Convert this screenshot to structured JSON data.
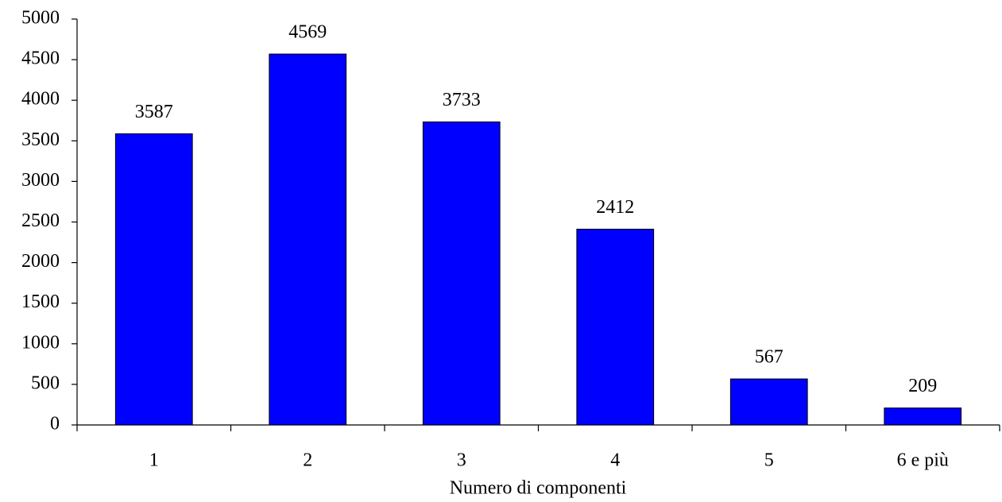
{
  "chart_data": {
    "type": "bar",
    "x_label": "Numero di componenti",
    "categories": [
      "1",
      "2",
      "3",
      "4",
      "5",
      "6 e più"
    ],
    "values": [
      3587,
      4569,
      3733,
      2412,
      567,
      209
    ],
    "color": "#0000ff",
    "ylim": [
      0,
      5000
    ],
    "yticks": [
      0,
      500,
      1000,
      1500,
      2000,
      2500,
      3000,
      3500,
      4000,
      4500,
      5000
    ],
    "grid": false
  }
}
